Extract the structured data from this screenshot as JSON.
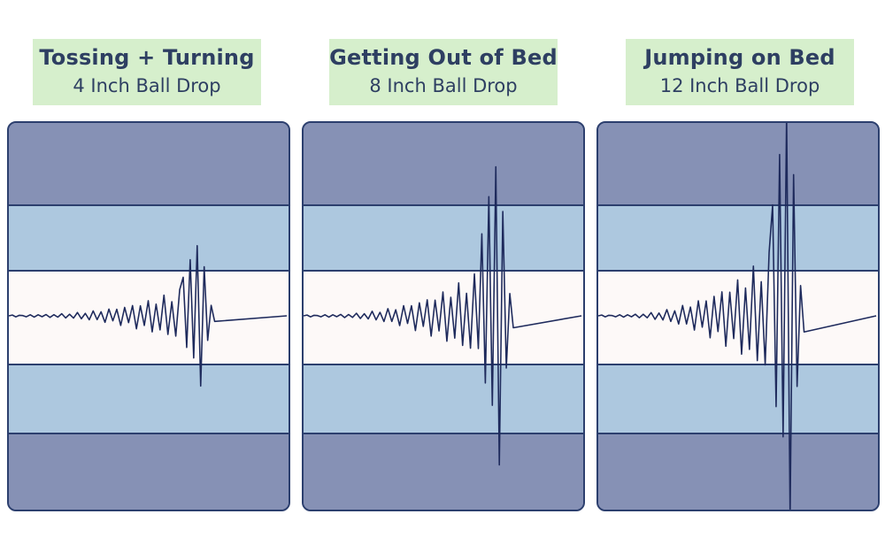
{
  "panels": [
    {
      "title": "Tossing + Turning",
      "subtitle": "4 Inch Ball Drop",
      "wave_icon": "waveform-icon",
      "amplitude": 1.0
    },
    {
      "title": "Getting Out of Bed",
      "subtitle": "8 Inch Ball Drop",
      "wave_icon": "waveform-icon",
      "amplitude": 2.0
    },
    {
      "title": "Jumping on Bed",
      "subtitle": "12 Inch Ball Drop",
      "wave_icon": "waveform-icon",
      "amplitude": 3.0
    }
  ],
  "colors": {
    "label_bg": "#d6efcc",
    "text": "#2e3f62",
    "dark_band": "#8691b5",
    "light_band": "#adc8df",
    "center_band": "#fdf9f8",
    "wave": "#1e2a5c"
  }
}
